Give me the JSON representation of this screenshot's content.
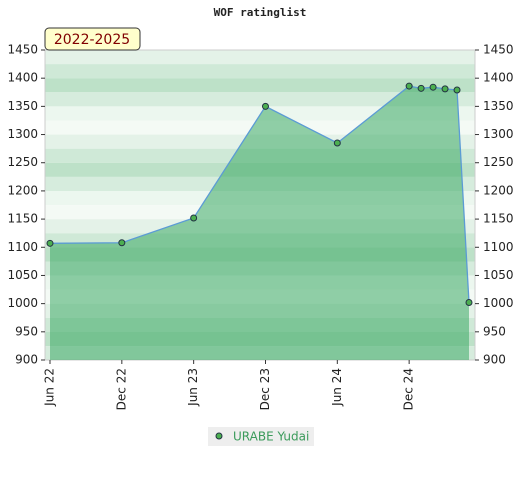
{
  "chart_data": {
    "type": "line",
    "title": "WOF ratinglist",
    "period_label": "2022-2025",
    "x": [
      "2022-06",
      "2022-12",
      "2023-06",
      "2023-12",
      "2024-06",
      "2024-12",
      "2025-01",
      "2025-02",
      "2025-03",
      "2025-04",
      "2025-05"
    ],
    "series": [
      {
        "name": "URABE Yudai",
        "color": "#5b9bd5",
        "marker_color": "#4caf50",
        "values": [
          1107,
          1108,
          1152,
          1350,
          1285,
          1386,
          1382,
          1384,
          1381,
          1379,
          1002
        ]
      }
    ],
    "xlim": [
      "2022-06",
      "2025-05"
    ],
    "xticks": [
      {
        "value": "2022-06",
        "label": "Jun 22"
      },
      {
        "value": "2022-12",
        "label": "Dec 22"
      },
      {
        "value": "2023-06",
        "label": "Jun 23"
      },
      {
        "value": "2023-12",
        "label": "Dec 23"
      },
      {
        "value": "2024-06",
        "label": "Jun 24"
      },
      {
        "value": "2024-12",
        "label": "Dec 24"
      }
    ],
    "ylim": [
      900,
      1450
    ],
    "yticks": [
      900,
      950,
      1000,
      1050,
      1100,
      1150,
      1200,
      1250,
      1300,
      1350,
      1400,
      1450
    ],
    "y2lim": [
      900,
      1450
    ],
    "y2ticks": [
      900,
      950,
      1000,
      1050,
      1100,
      1150,
      1200,
      1250,
      1300,
      1350,
      1400,
      1450
    ],
    "area": true
  }
}
